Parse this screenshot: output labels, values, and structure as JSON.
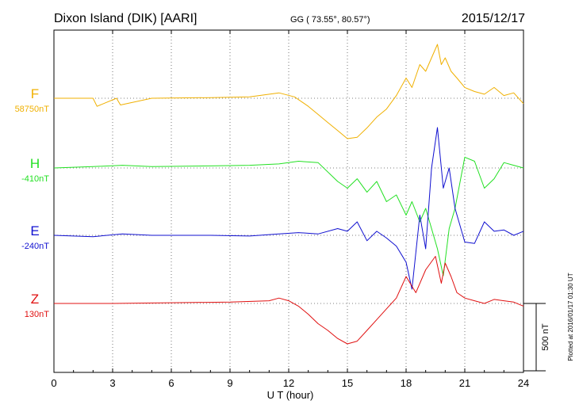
{
  "header": {
    "station": "Dixon Island (DIK)  [AARI]",
    "coords": "GG ( 73.55°,  80.57°)",
    "date": "2015/12/17"
  },
  "footer_note": "Plotted at 2016/01/17 01:30 UT",
  "colors": {
    "F": "#f0b000",
    "H": "#22e022",
    "E": "#1010d0",
    "Z": "#e01010"
  },
  "chart_data": {
    "type": "line",
    "title": "Dixon Island (DIK)  [AARI]",
    "xlabel": "U T (hour)",
    "ylabel": "",
    "xlim": [
      0,
      24
    ],
    "x_ticks": [
      0,
      3,
      6,
      9,
      12,
      15,
      18,
      21,
      24
    ],
    "x_tick_labels": [
      "0",
      "3",
      "6",
      "9",
      "12",
      "15",
      "18",
      "21",
      "24"
    ],
    "grid": true,
    "scale_bar_label": "500 nT",
    "scale_bar_nT": 500,
    "series": [
      {
        "name": "F",
        "baseline_label": "58750nT",
        "x": [
          0,
          2,
          2.2,
          3.2,
          3.4,
          5,
          8,
          10,
          11.5,
          12.3,
          13,
          13.5,
          14,
          14.5,
          15,
          15.5,
          16,
          16.5,
          17,
          17.5,
          18,
          18.3,
          18.7,
          19,
          19.3,
          19.6,
          19.8,
          20,
          20.3,
          20.6,
          21,
          21.5,
          22,
          22.5,
          23,
          23.5,
          24
        ],
        "y": [
          0,
          0,
          -60,
          0,
          -50,
          0,
          5,
          10,
          40,
          10,
          -60,
          -120,
          -180,
          -240,
          -300,
          -290,
          -220,
          -140,
          -80,
          20,
          150,
          80,
          250,
          200,
          300,
          400,
          250,
          300,
          200,
          150,
          80,
          50,
          30,
          80,
          20,
          40,
          -40
        ]
      },
      {
        "name": "H",
        "baseline_label": "-410nT",
        "x": [
          0,
          2,
          3.5,
          5,
          8,
          10,
          11.5,
          12.5,
          13.5,
          14.5,
          15,
          15.5,
          16,
          16.5,
          17,
          17.5,
          18,
          18.3,
          18.7,
          19,
          19.3,
          19.6,
          19.9,
          20.2,
          20.5,
          21,
          21.5,
          22,
          22.5,
          23,
          23.5,
          24
        ],
        "y": [
          0,
          10,
          20,
          10,
          15,
          20,
          30,
          50,
          40,
          -100,
          -150,
          -80,
          -180,
          -100,
          -250,
          -200,
          -350,
          -250,
          -400,
          -300,
          -450,
          -600,
          -800,
          -450,
          -300,
          80,
          50,
          -150,
          -80,
          40,
          20,
          0
        ]
      },
      {
        "name": "E",
        "baseline_label": "-240nT",
        "x": [
          0,
          2,
          3.5,
          5,
          8,
          10,
          11.5,
          12.5,
          13.5,
          14.5,
          15,
          15.5,
          16,
          16.5,
          17,
          17.5,
          18,
          18.3,
          18.7,
          19,
          19.3,
          19.6,
          19.9,
          20.2,
          20.5,
          21,
          21.5,
          22,
          22.5,
          23,
          23.5,
          24
        ],
        "y": [
          0,
          -10,
          10,
          0,
          0,
          -5,
          10,
          20,
          10,
          50,
          30,
          100,
          -40,
          30,
          -20,
          -80,
          -200,
          -400,
          150,
          -100,
          500,
          800,
          350,
          500,
          200,
          -50,
          -60,
          100,
          30,
          40,
          0,
          30
        ]
      },
      {
        "name": "Z",
        "baseline_label": "130nT",
        "x": [
          0,
          3,
          6,
          9,
          11,
          11.5,
          12,
          12.5,
          13,
          13.5,
          14,
          14.5,
          15,
          15.5,
          16,
          16.5,
          17,
          17.5,
          18,
          18.5,
          19,
          19.5,
          19.8,
          20,
          20.3,
          20.6,
          21,
          21.5,
          22,
          22.5,
          23,
          23.5,
          24
        ],
        "y": [
          0,
          0,
          5,
          10,
          20,
          40,
          20,
          -20,
          -80,
          -150,
          -200,
          -260,
          -300,
          -280,
          -200,
          -120,
          -40,
          40,
          200,
          80,
          250,
          350,
          150,
          300,
          200,
          80,
          40,
          20,
          0,
          30,
          20,
          10,
          -20
        ]
      }
    ]
  }
}
